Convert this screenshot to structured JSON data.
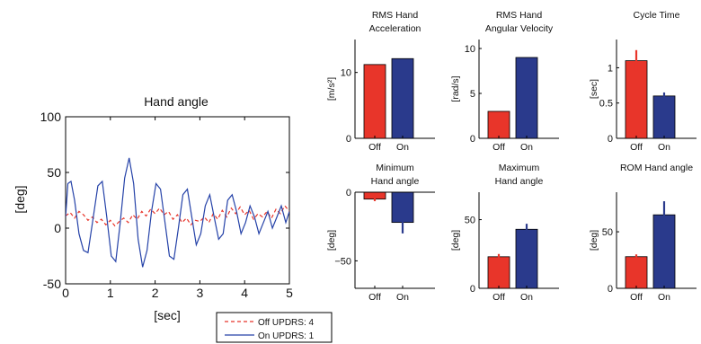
{
  "chart_data": [
    {
      "type": "line",
      "title": "Hand angle",
      "xlabel": "[sec]",
      "ylabel": "[deg]",
      "xlim": [
        0,
        5
      ],
      "ylim": [
        -50,
        100
      ],
      "xticks": [
        "0",
        "1",
        "2",
        "3",
        "4",
        "5"
      ],
      "yticks": [
        "-50",
        "0",
        "50",
        "100"
      ],
      "grid": false,
      "legend_position": "below-right",
      "series": [
        {
          "name": "Off UPDRS: 4",
          "color": "#e8352a",
          "style": "dashed",
          "x": [
            0,
            0.1,
            0.2,
            0.3,
            0.4,
            0.5,
            0.6,
            0.7,
            0.8,
            0.9,
            1.0,
            1.1,
            1.2,
            1.3,
            1.4,
            1.5,
            1.6,
            1.7,
            1.8,
            1.9,
            2.0,
            2.1,
            2.2,
            2.3,
            2.4,
            2.5,
            2.6,
            2.7,
            2.8,
            2.9,
            3.0,
            3.1,
            3.2,
            3.3,
            3.4,
            3.5,
            3.6,
            3.7,
            3.8,
            3.9,
            4.0,
            4.1,
            4.2,
            4.3,
            4.4,
            4.5,
            4.6,
            4.7,
            4.8,
            4.9,
            5.0
          ],
          "y": [
            11,
            14,
            9,
            15,
            12,
            7,
            10,
            5,
            8,
            3,
            7,
            2,
            6,
            9,
            5,
            12,
            8,
            15,
            11,
            17,
            13,
            18,
            12,
            15,
            8,
            12,
            5,
            9,
            3,
            7,
            6,
            10,
            5,
            13,
            8,
            16,
            10,
            18,
            13,
            19,
            12,
            16,
            8,
            13,
            10,
            15,
            9,
            17,
            13,
            20,
            15
          ]
        },
        {
          "name": "On UPDRS: 1",
          "color": "#2542a8",
          "style": "solid",
          "x": [
            0,
            0.05,
            0.12,
            0.2,
            0.3,
            0.4,
            0.5,
            0.6,
            0.72,
            0.82,
            0.92,
            1.02,
            1.12,
            1.22,
            1.32,
            1.42,
            1.52,
            1.62,
            1.72,
            1.82,
            1.92,
            2.02,
            2.12,
            2.22,
            2.32,
            2.42,
            2.52,
            2.62,
            2.72,
            2.82,
            2.92,
            3.02,
            3.12,
            3.22,
            3.32,
            3.42,
            3.52,
            3.62,
            3.72,
            3.82,
            3.92,
            4.02,
            4.12,
            4.22,
            4.32,
            4.42,
            4.52,
            4.62,
            4.72,
            4.82,
            4.92,
            5.0
          ],
          "y": [
            10,
            40,
            42,
            25,
            -5,
            -20,
            -22,
            5,
            38,
            42,
            10,
            -25,
            -30,
            5,
            45,
            63,
            40,
            -10,
            -35,
            -20,
            15,
            40,
            35,
            5,
            -25,
            -28,
            0,
            30,
            35,
            10,
            -15,
            -5,
            20,
            30,
            10,
            -10,
            -5,
            25,
            30,
            15,
            -5,
            5,
            20,
            10,
            -5,
            5,
            15,
            0,
            10,
            20,
            5,
            15
          ]
        }
      ]
    },
    {
      "type": "bar",
      "title": "RMS Hand Acceleration",
      "title_lines": [
        "RMS Hand",
        "Acceleration"
      ],
      "ylabel": "[m/s²]",
      "categories": [
        "Off",
        "On"
      ],
      "values": [
        11.2,
        12.1
      ],
      "errors": [
        0.0,
        0.0
      ],
      "colors": [
        "#e8352a",
        "#2a3a8c"
      ],
      "ylim": [
        0,
        15
      ],
      "yticks": [
        "0",
        "10"
      ]
    },
    {
      "type": "bar",
      "title": "RMS Hand Angular Velocity",
      "title_lines": [
        "RMS Hand",
        "Angular Velocity"
      ],
      "ylabel": "[rad/s]",
      "categories": [
        "Off",
        "On"
      ],
      "values": [
        3.0,
        9.0
      ],
      "errors": [
        0.0,
        0.0
      ],
      "colors": [
        "#e8352a",
        "#2a3a8c"
      ],
      "ylim": [
        0,
        11
      ],
      "yticks": [
        "0",
        "5",
        "10"
      ]
    },
    {
      "type": "bar",
      "title": "Cycle Time",
      "title_lines": [
        "Cycle Time"
      ],
      "ylabel": "[sec]",
      "categories": [
        "Off",
        "On"
      ],
      "values": [
        1.1,
        0.6
      ],
      "errors": [
        0.15,
        0.05
      ],
      "colors": [
        "#e8352a",
        "#2a3a8c"
      ],
      "ylim": [
        0,
        1.4
      ],
      "yticks": [
        "0",
        "0.5",
        "1"
      ]
    },
    {
      "type": "bar",
      "title": "Minimum Hand angle",
      "title_lines": [
        "Minimum",
        "Hand angle"
      ],
      "ylabel": "[deg]",
      "categories": [
        "Off",
        "On"
      ],
      "values": [
        -5,
        -22
      ],
      "errors": [
        1.5,
        8
      ],
      "colors": [
        "#e8352a",
        "#2a3a8c"
      ],
      "ylim": [
        -70,
        0
      ],
      "yticks": [
        "0",
        "−50"
      ]
    },
    {
      "type": "bar",
      "title": "Maximum Hand angle",
      "title_lines": [
        "Maximum",
        "Hand angle"
      ],
      "ylabel": "[deg]",
      "categories": [
        "Off",
        "On"
      ],
      "values": [
        23,
        43
      ],
      "errors": [
        2,
        4
      ],
      "colors": [
        "#e8352a",
        "#2a3a8c"
      ],
      "ylim": [
        0,
        70
      ],
      "yticks": [
        "0",
        "50"
      ]
    },
    {
      "type": "bar",
      "title": "ROM Hand angle",
      "title_lines": [
        "ROM Hand angle"
      ],
      "ylabel": "[deg]",
      "categories": [
        "Off",
        "On"
      ],
      "values": [
        28,
        65
      ],
      "errors": [
        2,
        12
      ],
      "colors": [
        "#e8352a",
        "#2a3a8c"
      ],
      "ylim": [
        0,
        85
      ],
      "yticks": [
        "0",
        "50"
      ]
    }
  ]
}
